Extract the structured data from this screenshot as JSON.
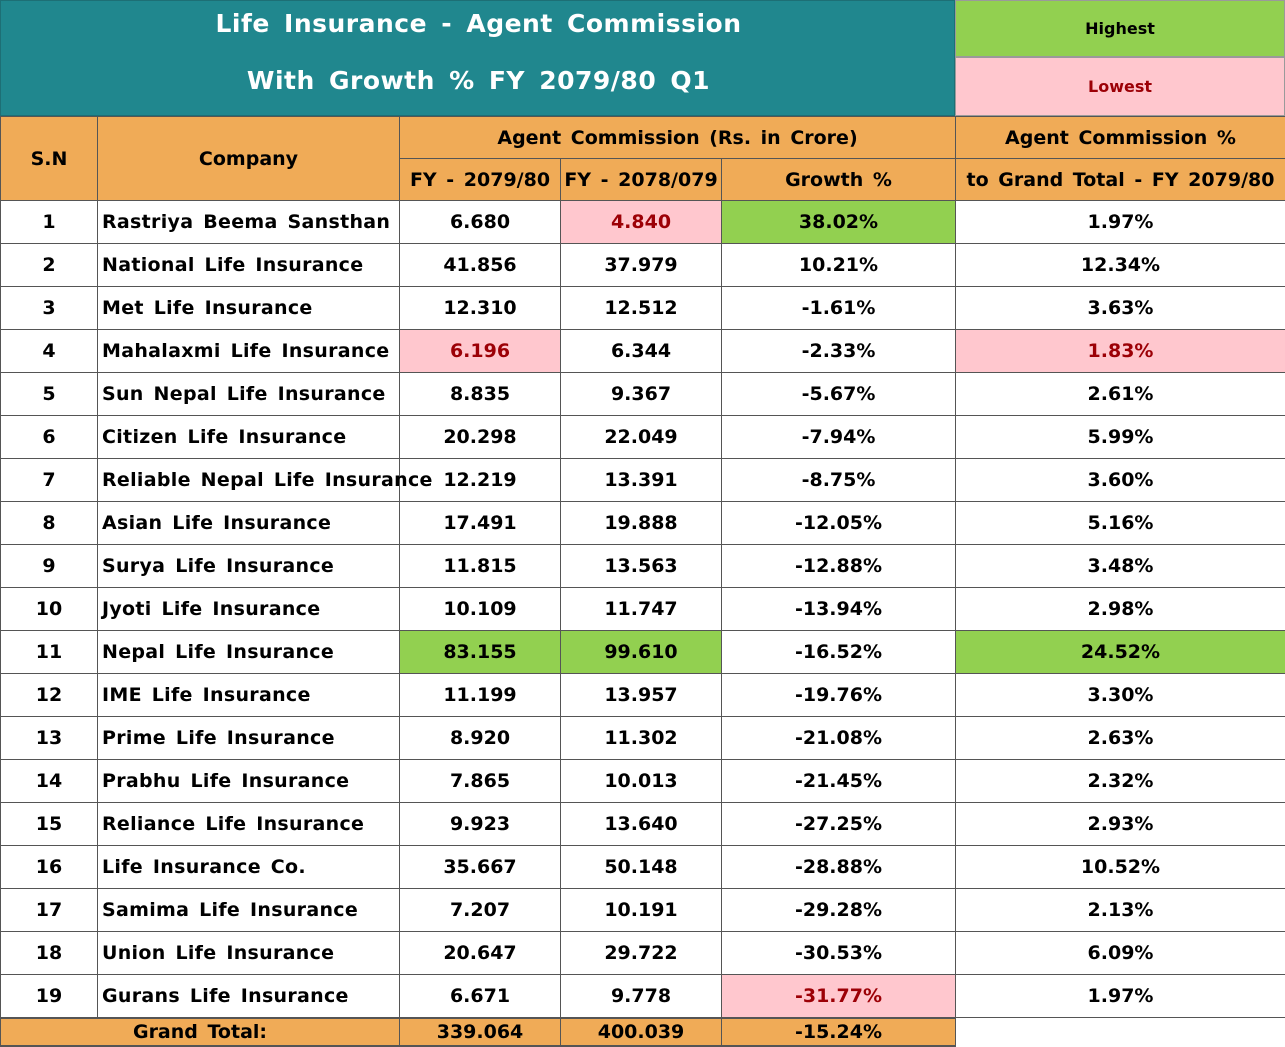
{
  "title": {
    "line1": "Life Insurance - Agent Commission",
    "line2": "With Growth % FY 2079/80 Q1"
  },
  "legend": {
    "highest_label": "Highest",
    "lowest_label": "Lowest",
    "highest_color": "#92d050",
    "lowest_color": "#ffc7ce",
    "lowest_text_color": "#9c0006"
  },
  "headers": {
    "sn": "S.N",
    "company": "Company",
    "agent_commission_group": "Agent Commission (Rs. in Crore)",
    "fy_current": "FY - 2079/80",
    "fy_previous": "FY - 2078/079",
    "growth": "Growth %",
    "share_line1": "Agent Commission %",
    "share_line2": "to Grand Total - FY 2079/80"
  },
  "rows": [
    {
      "sn": "1",
      "company": "Rastriya Beema Sansthan",
      "fy_current": "6.680",
      "fy_previous": "4.840",
      "growth": "38.02%",
      "share": "1.97%",
      "hl": {
        "fy_previous": "low",
        "growth": "high"
      }
    },
    {
      "sn": "2",
      "company": "National Life Insurance",
      "fy_current": "41.856",
      "fy_previous": "37.979",
      "growth": "10.21%",
      "share": "12.34%",
      "hl": {}
    },
    {
      "sn": "3",
      "company": "Met Life Insurance",
      "fy_current": "12.310",
      "fy_previous": "12.512",
      "growth": "-1.61%",
      "share": "3.63%",
      "hl": {}
    },
    {
      "sn": "4",
      "company": "Mahalaxmi Life Insurance",
      "fy_current": "6.196",
      "fy_previous": "6.344",
      "growth": "-2.33%",
      "share": "1.83%",
      "hl": {
        "fy_current": "low",
        "share": "low"
      }
    },
    {
      "sn": "5",
      "company": "Sun Nepal Life Insurance",
      "fy_current": "8.835",
      "fy_previous": "9.367",
      "growth": "-5.67%",
      "share": "2.61%",
      "hl": {}
    },
    {
      "sn": "6",
      "company": "Citizen Life Insurance",
      "fy_current": "20.298",
      "fy_previous": "22.049",
      "growth": "-7.94%",
      "share": "5.99%",
      "hl": {}
    },
    {
      "sn": "7",
      "company": "Reliable Nepal Life Insurance",
      "fy_current": "12.219",
      "fy_previous": "13.391",
      "growth": "-8.75%",
      "share": "3.60%",
      "hl": {}
    },
    {
      "sn": "8",
      "company": "Asian Life Insurance",
      "fy_current": "17.491",
      "fy_previous": "19.888",
      "growth": "-12.05%",
      "share": "5.16%",
      "hl": {}
    },
    {
      "sn": "9",
      "company": "Surya Life Insurance",
      "fy_current": "11.815",
      "fy_previous": "13.563",
      "growth": "-12.88%",
      "share": "3.48%",
      "hl": {}
    },
    {
      "sn": "10",
      "company": "Jyoti Life Insurance",
      "fy_current": "10.109",
      "fy_previous": "11.747",
      "growth": "-13.94%",
      "share": "2.98%",
      "hl": {}
    },
    {
      "sn": "11",
      "company": "Nepal Life Insurance",
      "fy_current": "83.155",
      "fy_previous": "99.610",
      "growth": "-16.52%",
      "share": "24.52%",
      "hl": {
        "fy_current": "high",
        "fy_previous": "high",
        "share": "high"
      }
    },
    {
      "sn": "12",
      "company": "IME Life Insurance",
      "fy_current": "11.199",
      "fy_previous": "13.957",
      "growth": "-19.76%",
      "share": "3.30%",
      "hl": {}
    },
    {
      "sn": "13",
      "company": "Prime Life Insurance",
      "fy_current": "8.920",
      "fy_previous": "11.302",
      "growth": "-21.08%",
      "share": "2.63%",
      "hl": {}
    },
    {
      "sn": "14",
      "company": "Prabhu Life Insurance",
      "fy_current": "7.865",
      "fy_previous": "10.013",
      "growth": "-21.45%",
      "share": "2.32%",
      "hl": {}
    },
    {
      "sn": "15",
      "company": "Reliance Life Insurance",
      "fy_current": "9.923",
      "fy_previous": "13.640",
      "growth": "-27.25%",
      "share": "2.93%",
      "hl": {}
    },
    {
      "sn": "16",
      "company": "Life Insurance Co.",
      "fy_current": "35.667",
      "fy_previous": "50.148",
      "growth": "-28.88%",
      "share": "10.52%",
      "hl": {}
    },
    {
      "sn": "17",
      "company": "Samima Life Insurance",
      "fy_current": "7.207",
      "fy_previous": "10.191",
      "growth": "-29.28%",
      "share": "2.13%",
      "hl": {}
    },
    {
      "sn": "18",
      "company": "Union Life Insurance",
      "fy_current": "20.647",
      "fy_previous": "29.722",
      "growth": "-30.53%",
      "share": "6.09%",
      "hl": {}
    },
    {
      "sn": "19",
      "company": "Gurans Life Insurance",
      "fy_current": "6.671",
      "fy_previous": "9.778",
      "growth": "-31.77%",
      "share": "1.97%",
      "hl": {
        "growth": "low"
      }
    }
  ],
  "total": {
    "label": "Grand Total:",
    "fy_current": "339.064",
    "fy_previous": "400.039",
    "growth": "-15.24%"
  }
}
